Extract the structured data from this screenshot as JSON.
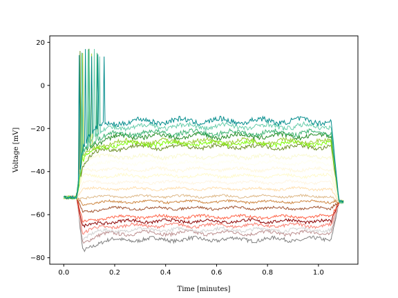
{
  "chart_data": {
    "type": "line",
    "title": "",
    "xlabel": "Time [minutes]",
    "ylabel": "Voltage [mV]",
    "xlim": [
      -0.055,
      1.155
    ],
    "ylim": [
      -83,
      23
    ],
    "xticks": [
      0.0,
      0.2,
      0.4,
      0.6,
      0.8,
      1.0
    ],
    "xtick_labels": [
      "0.0",
      "0.2",
      "0.4",
      "0.6",
      "0.8",
      "1.0"
    ],
    "yticks": [
      -80,
      -60,
      -40,
      -20,
      0,
      20
    ],
    "ytick_labels": [
      "−80",
      "−60",
      "−40",
      "−20",
      "0",
      "20"
    ],
    "grid": false,
    "legend": "none",
    "stimulus": {
      "start": 0.05,
      "end": 1.05,
      "baseline": -52,
      "end_time": 1.1
    },
    "series": [
      {
        "color": "#808080",
        "steady": -71.5,
        "peak": -77
      },
      {
        "color": "#bc8f8f",
        "steady": -68.5,
        "peak": -73
      },
      {
        "color": "#d3d3d3",
        "steady": -67,
        "peak": -71
      },
      {
        "color": "#fa8072",
        "steady": -65,
        "peak": -69
      },
      {
        "color": "#8b0000",
        "steady": -63,
        "peak": -66
      },
      {
        "color": "#ff6347",
        "steady": -61,
        "peak": -64
      },
      {
        "color": "#a0522d",
        "steady": -57,
        "peak": -59
      },
      {
        "color": "#cd853f",
        "steady": -54,
        "peak": -55
      },
      {
        "color": "#deb887",
        "steady": -51.5,
        "peak": -52
      },
      {
        "color": "#ffdead",
        "steady": -48,
        "peak": -48
      },
      {
        "color": "#fff5e1",
        "steady": -45,
        "peak": -45
      },
      {
        "color": "#fffacd",
        "steady": -42,
        "peak": -42
      },
      {
        "color": "#fff8dc",
        "steady": -39,
        "peak": -39
      },
      {
        "color": "#fffff0",
        "steady": -36,
        "peak": -36
      },
      {
        "color": "#fafad2",
        "steady": -33,
        "peak": -33
      },
      {
        "color": "#6b8e23",
        "steady": -28.5,
        "peak": -37,
        "spikes": [
          0.065
        ]
      },
      {
        "color": "#7cfc00",
        "steady": -27,
        "peak": -35,
        "spikes": [
          0.07
        ]
      },
      {
        "color": "#9acd32",
        "steady": -26,
        "peak": -34,
        "spikes": [
          0.075,
          0.11
        ]
      },
      {
        "color": "#228b22",
        "steady": -23.5,
        "peak": -32,
        "spikes": [
          0.07,
          0.1
        ]
      },
      {
        "color": "#3cb371",
        "steady": -22,
        "peak": -31,
        "spikes": [
          0.07,
          0.1,
          0.13
        ]
      },
      {
        "color": "#66cdaa",
        "steady": -19,
        "peak": -30,
        "spikes": [
          0.07,
          0.095,
          0.12,
          0.14
        ]
      },
      {
        "color": "#008b8b",
        "steady": -16.5,
        "peak": -28,
        "spikes": [
          0.062,
          0.085,
          0.11,
          0.135,
          0.16
        ]
      }
    ]
  }
}
